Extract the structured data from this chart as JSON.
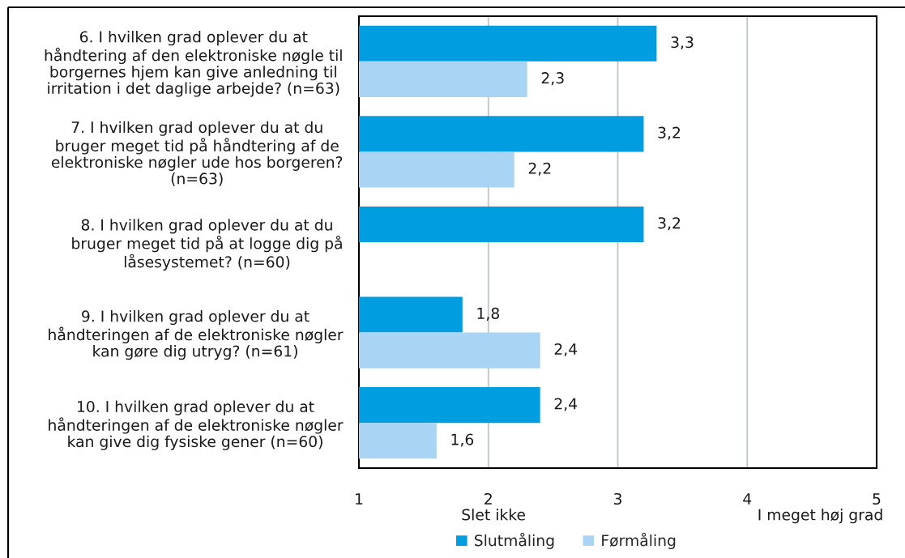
{
  "chart_data": {
    "type": "bar",
    "orientation": "horizontal",
    "categories": [
      "6. I hvilken grad oplever du at\nhåndtering af den elektroniske nøgle til\nborgernes hjem kan give anledning til\nirritation i det daglige arbejde? (n=63)",
      "7. I hvilken grad oplever du at du\nbruger meget tid på håndtering af de\nelektroniske nøgler ude hos borgeren?\n(n=63)",
      "8. I hvilken grad oplever du at du\nbruger meget tid på at logge dig på\nlåsesystemet? (n=60)",
      "9. I hvilken grad oplever du at\nhåndteringen af de elektroniske nøgler\nkan gøre dig utryg? (n=61)",
      "10. I hvilken grad oplever du at\nhåndteringen af de elektroniske nøgler\nkan give dig fysiske gener (n=60)"
    ],
    "series": [
      {
        "name": "Slutmåling",
        "color": "#009ee0",
        "values": [
          3.3,
          3.2,
          3.2,
          1.8,
          2.4
        ],
        "value_labels": [
          "3,3",
          "3,2",
          "3,2",
          "1,8",
          "2,4"
        ]
      },
      {
        "name": "Førmåling",
        "color": "#a9d4f3",
        "values": [
          2.3,
          2.2,
          null,
          2.4,
          1.6
        ],
        "value_labels": [
          "2,3",
          "2,2",
          null,
          "2,4",
          "1,6"
        ]
      }
    ],
    "xlim": [
      1,
      5
    ],
    "xticks": [
      1,
      2,
      3,
      4,
      5
    ],
    "grid": "x",
    "legend": "bottom",
    "annotations": [
      "Slet ikke",
      "I meget høj grad"
    ]
  }
}
